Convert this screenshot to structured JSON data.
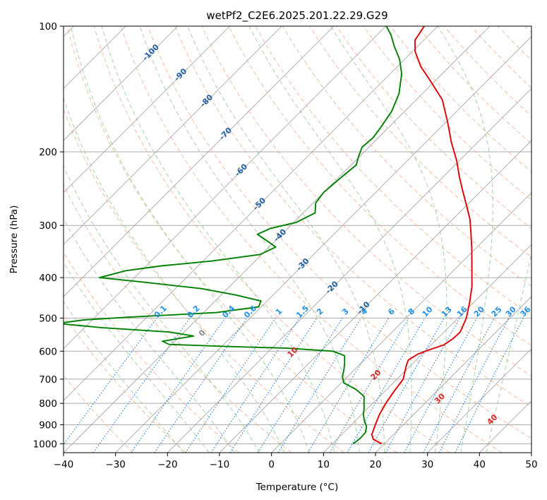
{
  "chart_data": {
    "type": "line",
    "title": "wetPf2_C2E6.2025.201.22.29.G29",
    "xlabel": "Temperature (°C)",
    "ylabel": "Pressure (hPa)",
    "xlim": [
      -40,
      50
    ],
    "ylim": [
      1050,
      100
    ],
    "y_scale": "log",
    "skew": true,
    "x_ticks": [
      -40,
      -30,
      -20,
      -10,
      0,
      10,
      20,
      30,
      40,
      50
    ],
    "y_ticks": [
      1000,
      900,
      800,
      700,
      600,
      500,
      400,
      300,
      200,
      100
    ],
    "grid": true,
    "colors": {
      "temperature": "#e00000",
      "dewpoint": "#008000",
      "isotherm": "#a0a0a0",
      "dry_adiabat": "#f4a582",
      "moist_adiabat": "#90c890",
      "mixing_ratio": "#1f78d1",
      "isobar": "#aaaaaa",
      "isotherm_label": "#1f5f9f",
      "mixing_label": "#1f8fe6",
      "moist_label": "#d62728"
    },
    "series": [
      {
        "points": [
          {
            "p": 1000,
            "t": 19.5
          },
          {
            "p": 975,
            "t": 17.0
          },
          {
            "p": 950,
            "t": 15.8
          },
          {
            "p": 900,
            "t": 14.6
          },
          {
            "p": 850,
            "t": 13.4
          },
          {
            "p": 800,
            "t": 12.5
          },
          {
            "p": 750,
            "t": 11.8
          },
          {
            "p": 700,
            "t": 11.2
          },
          {
            "p": 650,
            "t": 9.2
          },
          {
            "p": 630,
            "t": 8.5
          },
          {
            "p": 610,
            "t": 9.2
          },
          {
            "p": 595,
            "t": 10.6
          },
          {
            "p": 580,
            "t": 12.4
          },
          {
            "p": 560,
            "t": 13.0
          },
          {
            "p": 540,
            "t": 13.1
          },
          {
            "p": 500,
            "t": 11.6
          },
          {
            "p": 460,
            "t": 9.3
          },
          {
            "p": 420,
            "t": 6.6
          },
          {
            "p": 380,
            "t": 3.1
          },
          {
            "p": 340,
            "t": -0.8
          },
          {
            "p": 310,
            "t": -4.2
          },
          {
            "p": 290,
            "t": -6.7
          },
          {
            "p": 270,
            "t": -9.8
          },
          {
            "p": 250,
            "t": -13.2
          },
          {
            "p": 230,
            "t": -16.8
          },
          {
            "p": 210,
            "t": -20.5
          },
          {
            "p": 190,
            "t": -25.0
          },
          {
            "p": 170,
            "t": -29.6
          },
          {
            "p": 150,
            "t": -35.0
          },
          {
            "p": 135,
            "t": -41.0
          },
          {
            "p": 125,
            "t": -45.5
          },
          {
            "p": 115,
            "t": -49.5
          },
          {
            "p": 108,
            "t": -51.7
          },
          {
            "p": 100,
            "t": -52.6
          }
        ]
      },
      {
        "points": [
          {
            "p": 1000,
            "t": 14.0
          },
          {
            "p": 970,
            "t": 14.3
          },
          {
            "p": 940,
            "t": 14.2
          },
          {
            "p": 910,
            "t": 13.3
          },
          {
            "p": 880,
            "t": 11.7
          },
          {
            "p": 850,
            "t": 10.3
          },
          {
            "p": 820,
            "t": 9.2
          },
          {
            "p": 800,
            "t": 8.3
          },
          {
            "p": 770,
            "t": 7.0
          },
          {
            "p": 740,
            "t": 4.0
          },
          {
            "p": 715,
            "t": 0.5
          },
          {
            "p": 690,
            "t": -1.0
          },
          {
            "p": 665,
            "t": -2.0
          },
          {
            "p": 640,
            "t": -3.2
          },
          {
            "p": 615,
            "t": -4.6
          },
          {
            "p": 600,
            "t": -7.7
          },
          {
            "p": 590,
            "t": -17.3
          },
          {
            "p": 585,
            "t": -28.6
          },
          {
            "p": 578,
            "t": -40.5
          },
          {
            "p": 568,
            "t": -42.4
          },
          {
            "p": 552,
            "t": -37.4
          },
          {
            "p": 540,
            "t": -42.8
          },
          {
            "p": 527,
            "t": -56.7
          },
          {
            "p": 515,
            "t": -66.0
          },
          {
            "p": 505,
            "t": -61.6
          },
          {
            "p": 497,
            "t": -53.2
          },
          {
            "p": 485,
            "t": -37.5
          },
          {
            "p": 470,
            "t": -30.5
          },
          {
            "p": 455,
            "t": -31.2
          },
          {
            "p": 440,
            "t": -37.3
          },
          {
            "p": 425,
            "t": -45.0
          },
          {
            "p": 410,
            "t": -57.5
          },
          {
            "p": 400,
            "t": -66.7
          },
          {
            "p": 385,
            "t": -63.0
          },
          {
            "p": 375,
            "t": -57.1
          },
          {
            "p": 365,
            "t": -48.3
          },
          {
            "p": 352,
            "t": -40.3
          },
          {
            "p": 338,
            "t": -38.7
          },
          {
            "p": 325,
            "t": -42.0
          },
          {
            "p": 315,
            "t": -44.7
          },
          {
            "p": 305,
            "t": -43.3
          },
          {
            "p": 295,
            "t": -39.5
          },
          {
            "p": 280,
            "t": -37.7
          },
          {
            "p": 265,
            "t": -39.5
          },
          {
            "p": 250,
            "t": -40.0
          },
          {
            "p": 230,
            "t": -39.5
          },
          {
            "p": 215,
            "t": -39.0
          },
          {
            "p": 205,
            "t": -40.2
          },
          {
            "p": 195,
            "t": -41.3
          },
          {
            "p": 185,
            "t": -41.0
          },
          {
            "p": 175,
            "t": -41.5
          },
          {
            "p": 160,
            "t": -42.5
          },
          {
            "p": 145,
            "t": -44.5
          },
          {
            "p": 130,
            "t": -47.8
          },
          {
            "p": 120,
            "t": -51.0
          },
          {
            "p": 112,
            "t": -54.4
          },
          {
            "p": 105,
            "t": -57.3
          },
          {
            "p": 100,
            "t": -59.9
          }
        ]
      }
    ],
    "isotherm_labels": [
      {
        "t": -100,
        "p": 115
      },
      {
        "t": -90,
        "p": 130
      },
      {
        "t": -80,
        "p": 150
      },
      {
        "t": -70,
        "p": 180
      },
      {
        "t": -60,
        "p": 220
      },
      {
        "t": -50,
        "p": 265
      },
      {
        "t": -40,
        "p": 315
      },
      {
        "t": -30,
        "p": 370
      },
      {
        "t": -20,
        "p": 420
      },
      {
        "t": -10,
        "p": 470
      }
    ],
    "mixing_ratio_labels": [
      {
        "w": 0.1,
        "text": "0.1"
      },
      {
        "w": 0.2,
        "text": "0.2"
      },
      {
        "w": 0.4,
        "text": "0.4"
      },
      {
        "w": 0.6,
        "text": "0.6"
      },
      {
        "w": 1,
        "text": "1"
      },
      {
        "w": 1.5,
        "text": "1.5"
      },
      {
        "w": 2,
        "text": "2"
      },
      {
        "w": 3,
        "text": "3"
      },
      {
        "w": 4,
        "text": "4"
      },
      {
        "w": 6,
        "text": "6"
      },
      {
        "w": 8,
        "text": "8"
      },
      {
        "w": 10,
        "text": "10"
      },
      {
        "w": 13,
        "text": "13"
      },
      {
        "w": 16,
        "text": "16"
      },
      {
        "w": 20,
        "text": "20"
      },
      {
        "w": 25,
        "text": "25"
      },
      {
        "w": 30,
        "text": "30"
      },
      {
        "w": 36,
        "text": "36"
      }
    ],
    "mixing_ratio_label_p": 480,
    "moist_adiabat_labels": [
      {
        "t": 0,
        "p": 540,
        "color": "#888888"
      },
      {
        "t": 10,
        "p": 600,
        "color": "#d62728"
      },
      {
        "t": 20,
        "p": 680,
        "color": "#d62728"
      },
      {
        "t": 30,
        "p": 775,
        "color": "#d62728"
      },
      {
        "t": 40,
        "p": 870,
        "color": "#d62728"
      }
    ]
  }
}
